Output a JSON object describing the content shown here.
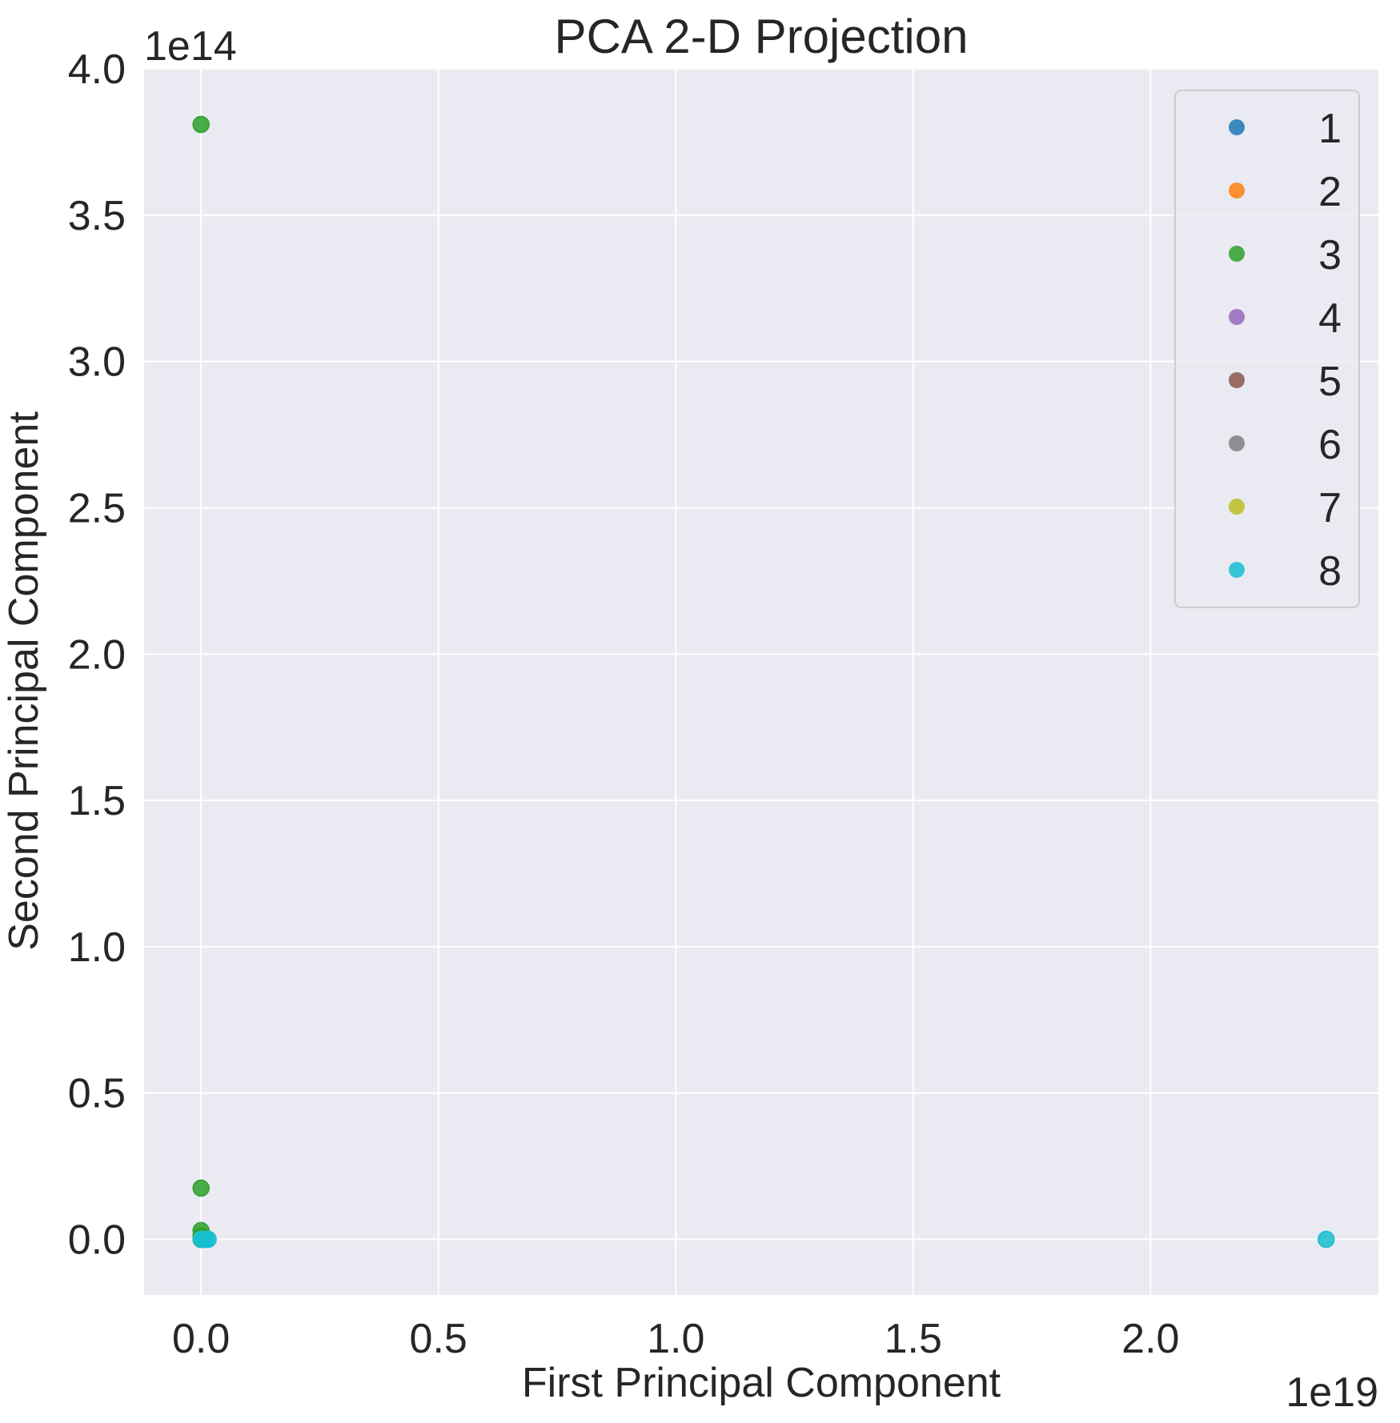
{
  "chart_data": {
    "type": "scatter",
    "title": "PCA 2-D Projection",
    "xlabel": "First Principal Component",
    "ylabel": "Second Principal Component",
    "x_offset_label": "1e19",
    "y_offset_label": "1e14",
    "xlim": [
      -0.12,
      2.48
    ],
    "ylim": [
      -0.19,
      4.0
    ],
    "x_ticks": [
      0.0,
      0.5,
      1.0,
      1.5,
      2.0
    ],
    "x_tick_labels": [
      "0.0",
      "0.5",
      "1.0",
      "1.5",
      "2.0"
    ],
    "y_ticks": [
      0.0,
      0.5,
      1.0,
      1.5,
      2.0,
      2.5,
      3.0,
      3.5,
      4.0
    ],
    "y_tick_labels": [
      "0.0",
      "0.5",
      "1.0",
      "1.5",
      "2.0",
      "2.5",
      "3.0",
      "3.5",
      "4.0"
    ],
    "grid": true,
    "background": "#eaeaf2",
    "legend_position": "top-right",
    "series": [
      {
        "name": "1",
        "color": "#1f77b4",
        "points": [
          [
            0.0,
            0.0
          ],
          [
            0.002,
            0.001
          ],
          [
            0.004,
            0.0
          ]
        ]
      },
      {
        "name": "2",
        "color": "#ff7f0e",
        "points": [
          [
            0.0,
            0.0
          ],
          [
            0.003,
            0.0
          ]
        ]
      },
      {
        "name": "3",
        "color": "#2ca02c",
        "points": [
          [
            0.0,
            3.81
          ],
          [
            0.0,
            0.175
          ],
          [
            0.0,
            0.03
          ],
          [
            0.0,
            0.012
          ],
          [
            0.002,
            0.0
          ]
        ]
      },
      {
        "name": "4",
        "color": "#9467bd",
        "points": [
          [
            0.0,
            0.0
          ],
          [
            0.001,
            0.0
          ]
        ]
      },
      {
        "name": "5",
        "color": "#8c564b",
        "points": [
          [
            0.0,
            0.0
          ],
          [
            0.002,
            0.0
          ]
        ]
      },
      {
        "name": "6",
        "color": "#7f7f7f",
        "points": [
          [
            0.0,
            0.0
          ],
          [
            0.003,
            0.0
          ]
        ]
      },
      {
        "name": "7",
        "color": "#bcbd22",
        "points": [
          [
            0.0,
            0.0
          ],
          [
            0.001,
            0.0
          ]
        ]
      },
      {
        "name": "8",
        "color": "#17becf",
        "points": [
          [
            0.0,
            0.0
          ],
          [
            0.005,
            0.0
          ],
          [
            0.01,
            0.0
          ],
          [
            0.015,
            0.0
          ],
          [
            2.37,
            0.0
          ]
        ]
      }
    ]
  }
}
